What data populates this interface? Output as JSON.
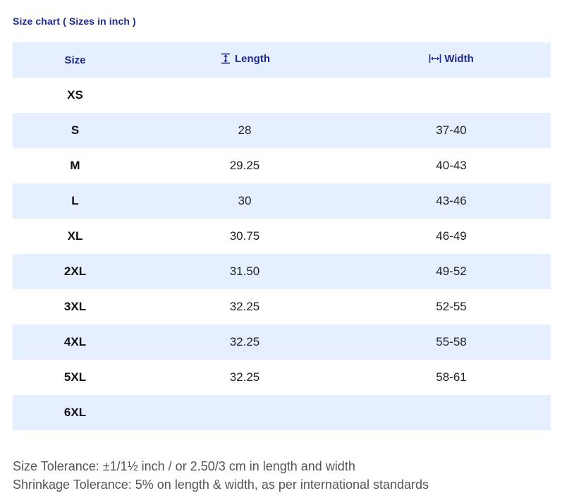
{
  "title": "Size chart ( Sizes in inch )",
  "columns": {
    "size": "Size",
    "length": "Length",
    "width": "Width",
    "length_icon": "vertical-length-icon",
    "width_icon": "horizontal-width-icon"
  },
  "rows": [
    {
      "size": "XS",
      "length": "",
      "width": ""
    },
    {
      "size": "S",
      "length": "28",
      "width": "37-40"
    },
    {
      "size": "M",
      "length": "29.25",
      "width": "40-43"
    },
    {
      "size": "L",
      "length": "30",
      "width": "43-46"
    },
    {
      "size": "XL",
      "length": "30.75",
      "width": "46-49"
    },
    {
      "size": "2XL",
      "length": "31.50",
      "width": "49-52"
    },
    {
      "size": "3XL",
      "length": "32.25",
      "width": "52-55"
    },
    {
      "size": "4XL",
      "length": "32.25",
      "width": "55-58"
    },
    {
      "size": "5XL",
      "length": "32.25",
      "width": "58-61"
    },
    {
      "size": "6XL",
      "length": "",
      "width": ""
    }
  ],
  "notes": {
    "size_tolerance": "Size Tolerance: ±1/1½ inch / or 2.50/3 cm in length and width",
    "shrinkage_tolerance": "Shrinkage Tolerance: 5% on length & width, as per international standards"
  },
  "colors": {
    "accent": "#1f2a8a",
    "row_shade": "#e6efff",
    "note_text": "#555555"
  }
}
